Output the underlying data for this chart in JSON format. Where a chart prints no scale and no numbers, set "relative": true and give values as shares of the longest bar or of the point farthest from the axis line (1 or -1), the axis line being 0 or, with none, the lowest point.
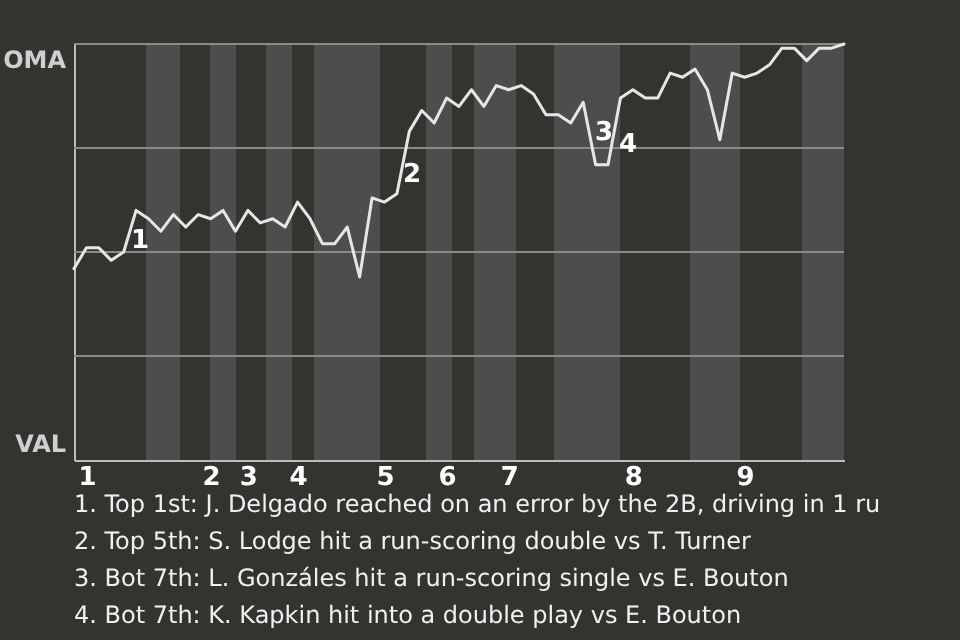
{
  "chart_data": {
    "type": "line",
    "relative": true,
    "categories": [
      null,
      "1",
      null,
      null,
      null,
      null,
      null,
      null,
      null,
      null,
      null,
      "2",
      null,
      null,
      "3",
      null,
      null,
      null,
      "4",
      null,
      null,
      null,
      null,
      null,
      null,
      "5",
      null,
      null,
      null,
      null,
      "6",
      null,
      null,
      null,
      null,
      "7",
      null,
      null,
      null,
      null,
      null,
      null,
      null,
      null,
      null,
      "8",
      null,
      null,
      null,
      null,
      null,
      null,
      null,
      null,
      "9",
      null,
      null,
      null,
      null,
      null,
      null,
      null,
      null
    ],
    "series": [
      {
        "color": "#e6e6e6",
        "values": [
          0.46,
          0.51,
          0.51,
          0.48,
          0.5,
          0.6,
          0.58,
          0.55,
          0.59,
          0.56,
          0.59,
          0.58,
          0.6,
          0.55,
          0.6,
          0.57,
          0.58,
          0.56,
          0.62,
          0.58,
          0.52,
          0.52,
          0.56,
          0.44,
          0.63,
          0.62,
          0.64,
          0.79,
          0.84,
          0.81,
          0.87,
          0.85,
          0.89,
          0.85,
          0.9,
          0.89,
          0.9,
          0.88,
          0.83,
          0.83,
          0.81,
          0.86,
          0.71,
          0.71,
          0.87,
          0.89,
          0.87,
          0.87,
          0.93,
          0.92,
          0.94,
          0.89,
          0.77,
          0.93,
          0.92,
          0.93,
          0.95,
          0.99,
          0.99,
          0.96,
          0.99,
          0.99,
          1.0
        ]
      }
    ],
    "annotations": [
      "OMA",
      "VAL",
      "1",
      "2",
      "3",
      "4",
      "1. Top 1st: J. Delgado reached on an error by the 2B, driving in 1 ru",
      "2. Top 5th: S. Lodge hit a run-scoring double vs T. Turner",
      "3. Bot 7th: L. Gonzáles hit a run-scoring single vs E. Bouton",
      "4. Bot 7th: K. Kapkin hit into a double play vs E. Bouton"
    ]
  }
}
